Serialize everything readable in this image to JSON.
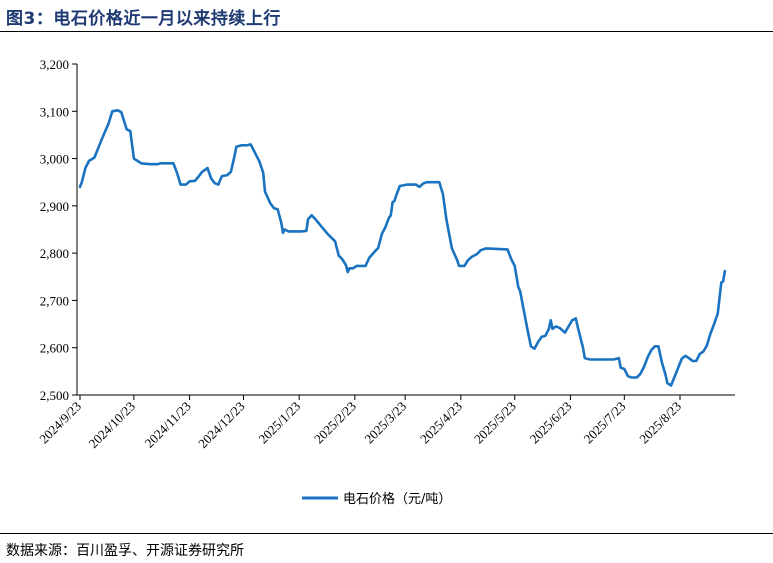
{
  "figure": {
    "title": "图3：电石价格近一月以来持续上行",
    "source": "数据来源：百川盈孚、开源证券研究所"
  },
  "chart_data": {
    "type": "line",
    "title": "图3：电石价格近一月以来持续上行",
    "xlabel": "",
    "ylabel": "",
    "ylim": [
      2500,
      3200
    ],
    "yticks": [
      2500,
      2600,
      2700,
      2800,
      2900,
      3000,
      3100,
      3200
    ],
    "ytick_labels": [
      "2,500",
      "2,600",
      "2,700",
      "2,800",
      "2,900",
      "3,000",
      "3,100",
      "3,200"
    ],
    "xlim": [
      "2024-09-23",
      "2025-09-05"
    ],
    "xticks": [
      "2024-09-23",
      "2024-10-23",
      "2024-11-23",
      "2024-12-23",
      "2025-01-23",
      "2025-02-23",
      "2025-03-23",
      "2025-04-23",
      "2025-05-23",
      "2025-06-23",
      "2025-07-23",
      "2025-08-23"
    ],
    "xtick_labels": [
      "2024/9/23",
      "2024/10/23",
      "2024/11/23",
      "2024/12/23",
      "2025/1/23",
      "2025/2/23",
      "2025/3/23",
      "2025/4/23",
      "2025/5/23",
      "2025/6/23",
      "2025/7/23",
      "2025/8/23"
    ],
    "grid": false,
    "legend_position": "bottom-center",
    "series": [
      {
        "name": "电石价格（元/吨）",
        "color": "#1a73c0",
        "points": [
          [
            "2024-09-23",
            2940
          ],
          [
            "2024-09-24",
            2950
          ],
          [
            "2024-09-26",
            2980
          ],
          [
            "2024-09-28",
            2995
          ],
          [
            "2024-10-01",
            3002
          ],
          [
            "2024-10-05",
            3040
          ],
          [
            "2024-10-09",
            3075
          ],
          [
            "2024-10-11",
            3100
          ],
          [
            "2024-10-14",
            3102
          ],
          [
            "2024-10-16",
            3098
          ],
          [
            "2024-10-19",
            3062
          ],
          [
            "2024-10-21",
            3058
          ],
          [
            "2024-10-23",
            3000
          ],
          [
            "2024-10-25",
            2995
          ],
          [
            "2024-10-27",
            2990
          ],
          [
            "2024-11-01",
            2988
          ],
          [
            "2024-11-05",
            2988
          ],
          [
            "2024-11-07",
            2990
          ],
          [
            "2024-11-14",
            2990
          ],
          [
            "2024-11-16",
            2970
          ],
          [
            "2024-11-18",
            2945
          ],
          [
            "2024-11-21",
            2945
          ],
          [
            "2024-11-23",
            2952
          ],
          [
            "2024-11-26",
            2953
          ],
          [
            "2024-11-28",
            2962
          ],
          [
            "2024-11-30",
            2972
          ],
          [
            "2024-12-03",
            2980
          ],
          [
            "2024-12-05",
            2958
          ],
          [
            "2024-12-07",
            2948
          ],
          [
            "2024-12-09",
            2945
          ],
          [
            "2024-12-11",
            2963
          ],
          [
            "2024-12-14",
            2965
          ],
          [
            "2024-12-16",
            2972
          ],
          [
            "2024-12-18",
            3005
          ],
          [
            "2024-12-19",
            3025
          ],
          [
            "2024-12-22",
            3028
          ],
          [
            "2024-12-25",
            3028
          ],
          [
            "2024-12-27",
            3030
          ],
          [
            "2024-12-30",
            3008
          ],
          [
            "2025-01-01",
            2993
          ],
          [
            "2025-01-03",
            2970
          ],
          [
            "2025-01-04",
            2930
          ],
          [
            "2025-01-07",
            2905
          ],
          [
            "2025-01-09",
            2895
          ],
          [
            "2025-01-11",
            2893
          ],
          [
            "2025-01-13",
            2865
          ],
          [
            "2025-01-14",
            2843
          ],
          [
            "2025-01-15",
            2850
          ],
          [
            "2025-01-17",
            2846
          ],
          [
            "2025-01-20",
            2846
          ],
          [
            "2025-01-24",
            2846
          ],
          [
            "2025-01-27",
            2847
          ],
          [
            "2025-01-28",
            2872
          ],
          [
            "2025-01-30",
            2880
          ],
          [
            "2025-02-01",
            2872
          ],
          [
            "2025-02-04",
            2858
          ],
          [
            "2025-02-08",
            2840
          ],
          [
            "2025-02-12",
            2825
          ],
          [
            "2025-02-14",
            2795
          ],
          [
            "2025-02-16",
            2787
          ],
          [
            "2025-02-18",
            2775
          ],
          [
            "2025-02-19",
            2760
          ],
          [
            "2025-02-20",
            2768
          ],
          [
            "2025-02-22",
            2768
          ],
          [
            "2025-02-24",
            2773
          ],
          [
            "2025-02-27",
            2773
          ],
          [
            "2025-03-01",
            2773
          ],
          [
            "2025-03-03",
            2790
          ],
          [
            "2025-03-06",
            2803
          ],
          [
            "2025-03-08",
            2811
          ],
          [
            "2025-03-10",
            2840
          ],
          [
            "2025-03-12",
            2855
          ],
          [
            "2025-03-14",
            2875
          ],
          [
            "2025-03-15",
            2880
          ],
          [
            "2025-03-16",
            2908
          ],
          [
            "2025-03-17",
            2910
          ],
          [
            "2025-03-18",
            2922
          ],
          [
            "2025-03-20",
            2942
          ],
          [
            "2025-03-24",
            2945
          ],
          [
            "2025-03-29",
            2945
          ],
          [
            "2025-03-31",
            2940
          ],
          [
            "2025-04-02",
            2947
          ],
          [
            "2025-04-04",
            2950
          ],
          [
            "2025-04-11",
            2950
          ],
          [
            "2025-04-13",
            2925
          ],
          [
            "2025-04-15",
            2870
          ],
          [
            "2025-04-18",
            2810
          ],
          [
            "2025-04-21",
            2785
          ],
          [
            "2025-04-22",
            2773
          ],
          [
            "2025-04-25",
            2773
          ],
          [
            "2025-04-27",
            2785
          ],
          [
            "2025-04-29",
            2792
          ],
          [
            "2025-05-02",
            2798
          ],
          [
            "2025-05-04",
            2806
          ],
          [
            "2025-05-07",
            2810
          ],
          [
            "2025-05-19",
            2808
          ],
          [
            "2025-05-21",
            2788
          ],
          [
            "2025-05-23",
            2773
          ],
          [
            "2025-05-25",
            2728
          ],
          [
            "2025-05-26",
            2720
          ],
          [
            "2025-05-28",
            2680
          ],
          [
            "2025-05-30",
            2640
          ],
          [
            "2025-06-01",
            2603
          ],
          [
            "2025-06-03",
            2598
          ],
          [
            "2025-06-05",
            2612
          ],
          [
            "2025-06-07",
            2623
          ],
          [
            "2025-06-09",
            2625
          ],
          [
            "2025-06-11",
            2640
          ],
          [
            "2025-06-12",
            2658
          ],
          [
            "2025-06-13",
            2640
          ],
          [
            "2025-06-15",
            2645
          ],
          [
            "2025-06-17",
            2642
          ],
          [
            "2025-06-20",
            2632
          ],
          [
            "2025-06-22",
            2645
          ],
          [
            "2025-06-24",
            2658
          ],
          [
            "2025-06-26",
            2662
          ],
          [
            "2025-06-27",
            2645
          ],
          [
            "2025-06-28",
            2630
          ],
          [
            "2025-06-30",
            2600
          ],
          [
            "2025-07-01",
            2578
          ],
          [
            "2025-07-04",
            2575
          ],
          [
            "2025-07-17",
            2575
          ],
          [
            "2025-07-20",
            2578
          ],
          [
            "2025-07-21",
            2558
          ],
          [
            "2025-07-23",
            2555
          ],
          [
            "2025-07-25",
            2540
          ],
          [
            "2025-07-27",
            2537
          ],
          [
            "2025-07-30",
            2537
          ],
          [
            "2025-08-01",
            2545
          ],
          [
            "2025-08-03",
            2560
          ],
          [
            "2025-08-05",
            2580
          ],
          [
            "2025-08-07",
            2595
          ],
          [
            "2025-08-09",
            2603
          ],
          [
            "2025-08-11",
            2603
          ],
          [
            "2025-08-13",
            2568
          ],
          [
            "2025-08-15",
            2542
          ],
          [
            "2025-08-16",
            2525
          ],
          [
            "2025-08-18",
            2520
          ],
          [
            "2025-08-21",
            2548
          ],
          [
            "2025-08-24",
            2577
          ],
          [
            "2025-08-26",
            2583
          ],
          [
            "2025-08-28",
            2578
          ],
          [
            "2025-08-30",
            2572
          ],
          [
            "2025-09-01",
            2572
          ],
          [
            "2025-09-03",
            2587
          ],
          [
            "2025-09-05",
            2592
          ],
          [
            "2025-09-07",
            2605
          ],
          [
            "2025-09-09",
            2630
          ],
          [
            "2025-09-11",
            2650
          ],
          [
            "2025-09-13",
            2672
          ],
          [
            "2025-09-15",
            2738
          ],
          [
            "2025-09-16",
            2740
          ],
          [
            "2025-09-17",
            2762
          ]
        ]
      }
    ]
  }
}
